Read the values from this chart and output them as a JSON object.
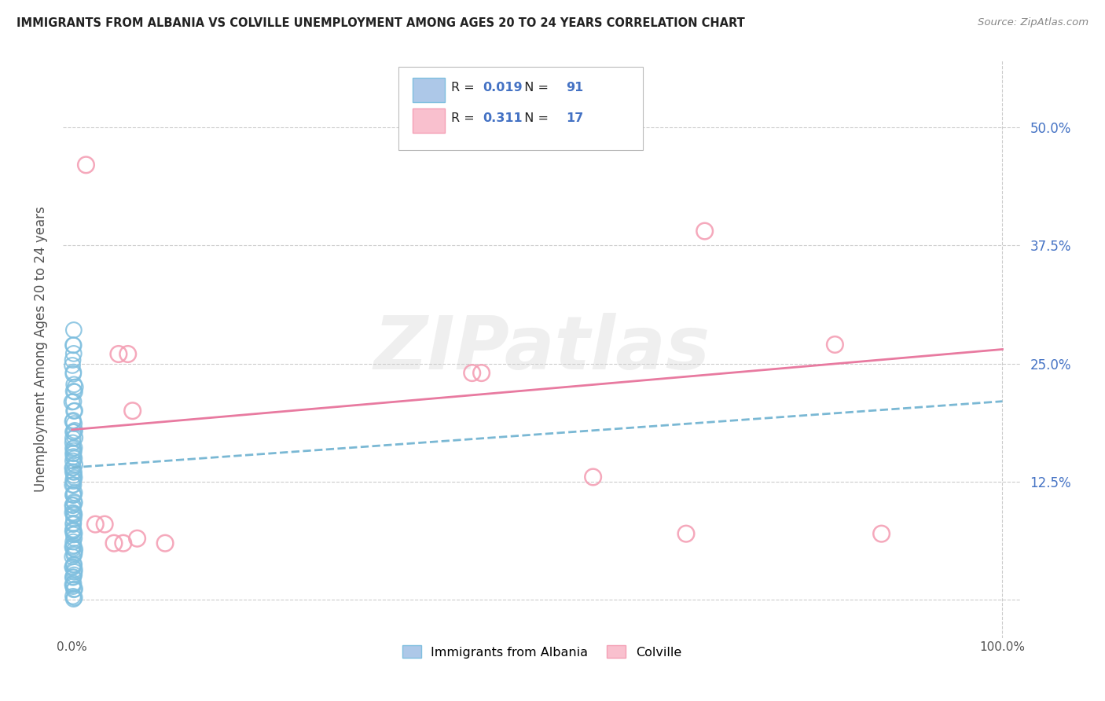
{
  "title": "IMMIGRANTS FROM ALBANIA VS COLVILLE UNEMPLOYMENT AMONG AGES 20 TO 24 YEARS CORRELATION CHART",
  "source": "Source: ZipAtlas.com",
  "ylabel": "Unemployment Among Ages 20 to 24 years",
  "xlim": [
    -0.01,
    1.02
  ],
  "ylim": [
    -0.04,
    0.57
  ],
  "xtick_positions": [
    0.0,
    1.0
  ],
  "xticklabels": [
    "0.0%",
    "100.0%"
  ],
  "ytick_positions": [
    0.0,
    0.125,
    0.25,
    0.375,
    0.5
  ],
  "yticklabels_right": [
    "",
    "12.5%",
    "25.0%",
    "37.5%",
    "50.0%"
  ],
  "blue_color": "#7fbfdf",
  "pink_color": "#f4a0b5",
  "blue_line_color": "#7ab8d4",
  "pink_line_color": "#e87aa0",
  "legend_R_blue": "0.019",
  "legend_N_blue": "91",
  "legend_R_pink": "0.311",
  "legend_N_pink": "17",
  "text_color": "#4472c4",
  "background_color": "#ffffff",
  "grid_color": "#cccccc",
  "blue_scatter_x": [
    0.001,
    0.002,
    0.001,
    0.002,
    0.003,
    0.001,
    0.002,
    0.001,
    0.002,
    0.003,
    0.001,
    0.002,
    0.001,
    0.002,
    0.001,
    0.002,
    0.003,
    0.001,
    0.002,
    0.001,
    0.002,
    0.001,
    0.002,
    0.001,
    0.002,
    0.001,
    0.002,
    0.001,
    0.002,
    0.001,
    0.002,
    0.001,
    0.002,
    0.001,
    0.002,
    0.003,
    0.001,
    0.002,
    0.001,
    0.002,
    0.001,
    0.002,
    0.001,
    0.002,
    0.001,
    0.002,
    0.001,
    0.002,
    0.001,
    0.002,
    0.001,
    0.002,
    0.001,
    0.002,
    0.001,
    0.002,
    0.001,
    0.002,
    0.001,
    0.002,
    0.001,
    0.002,
    0.001,
    0.002,
    0.001,
    0.002,
    0.001,
    0.002,
    0.001,
    0.002,
    0.001,
    0.002,
    0.001,
    0.002,
    0.001,
    0.002,
    0.001,
    0.002,
    0.001,
    0.002,
    0.001,
    0.002,
    0.001,
    0.002,
    0.001,
    0.002,
    0.001,
    0.002,
    0.001,
    0.002,
    0.001
  ],
  "blue_scatter_y": [
    0.285,
    0.27,
    0.255,
    0.24,
    0.225,
    0.21,
    0.2,
    0.19,
    0.185,
    0.18,
    0.175,
    0.17,
    0.165,
    0.16,
    0.155,
    0.15,
    0.145,
    0.14,
    0.135,
    0.13,
    0.125,
    0.12,
    0.115,
    0.11,
    0.105,
    0.1,
    0.095,
    0.09,
    0.085,
    0.08,
    0.075,
    0.07,
    0.065,
    0.06,
    0.055,
    0.05,
    0.045,
    0.04,
    0.035,
    0.03,
    0.025,
    0.02,
    0.015,
    0.01,
    0.005,
    0.0,
    0.18,
    0.17,
    0.16,
    0.15,
    0.14,
    0.13,
    0.12,
    0.11,
    0.1,
    0.09,
    0.08,
    0.07,
    0.06,
    0.05,
    0.04,
    0.03,
    0.02,
    0.01,
    0.19,
    0.2,
    0.21,
    0.22,
    0.23,
    0.24,
    0.25,
    0.26,
    0.27,
    0.16,
    0.155,
    0.145,
    0.135,
    0.125,
    0.115,
    0.105,
    0.095,
    0.085,
    0.075,
    0.065,
    0.055,
    0.045,
    0.035,
    0.025,
    0.015,
    0.005,
    0.22
  ],
  "pink_scatter_x": [
    0.015,
    0.025,
    0.035,
    0.05,
    0.06,
    0.065,
    0.1,
    0.43,
    0.44,
    0.56,
    0.66,
    0.68,
    0.82,
    0.87,
    0.055,
    0.045,
    0.07
  ],
  "pink_scatter_y": [
    0.46,
    0.08,
    0.08,
    0.26,
    0.26,
    0.2,
    0.06,
    0.24,
    0.24,
    0.13,
    0.07,
    0.39,
    0.27,
    0.07,
    0.06,
    0.06,
    0.065
  ],
  "blue_trend_y_start": 0.14,
  "blue_trend_y_end": 0.21,
  "pink_trend_y_start": 0.18,
  "pink_trend_y_end": 0.265
}
